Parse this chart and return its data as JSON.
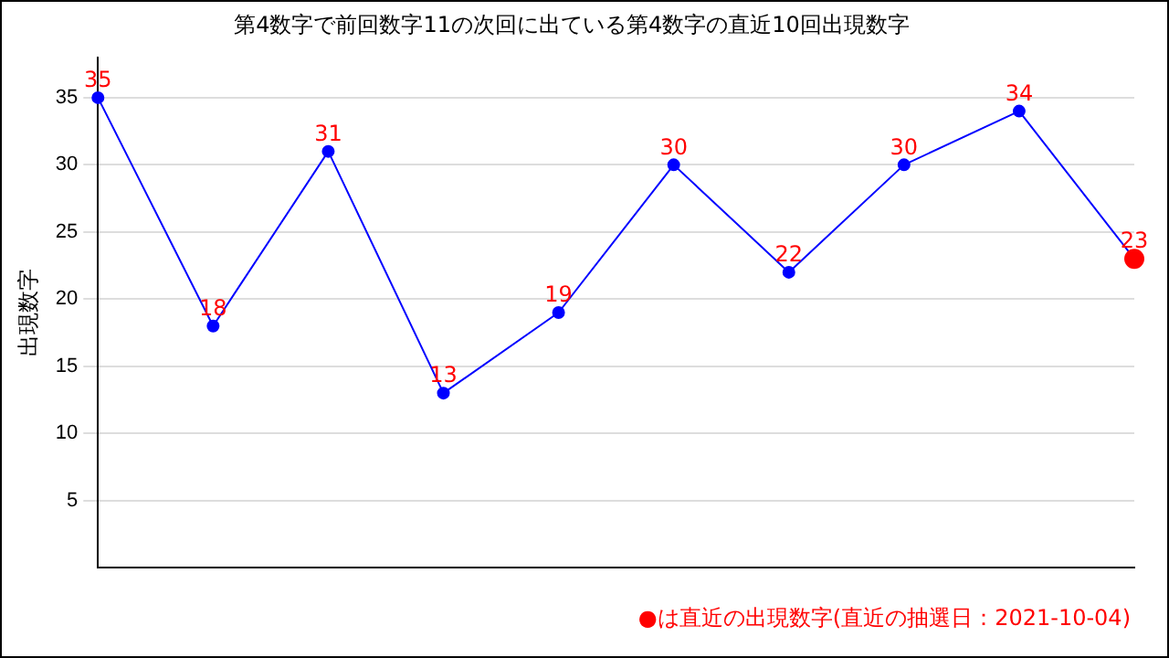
{
  "chart_data": {
    "type": "line",
    "title": "第4数字で前回数字11の次回に出ている第4数字の直近10回出現数字",
    "ylabel": "出現数字",
    "categories": [
      null,
      null,
      null,
      null,
      null,
      null,
      null,
      null,
      null,
      null
    ],
    "series": [
      {
        "color": "#0000ff",
        "values": [
          35,
          18,
          31,
          13,
          19,
          30,
          22,
          30,
          34,
          23
        ],
        "colors": [
          "#0000ff",
          "#0000ff",
          "#0000ff",
          "#0000ff",
          "#0000ff",
          "#0000ff",
          "#0000ff",
          "#0000ff",
          "#0000ff",
          "#ff0000"
        ]
      }
    ],
    "ylim": [
      0,
      38
    ],
    "yticks": [
      5,
      10,
      15,
      20,
      25,
      30,
      35
    ],
    "grid": "y",
    "legend": false,
    "marker": "circle",
    "data_labels": true,
    "annotations": [
      "●は直近の出現数字(直近の抽選日：2021-10-04)"
    ]
  }
}
